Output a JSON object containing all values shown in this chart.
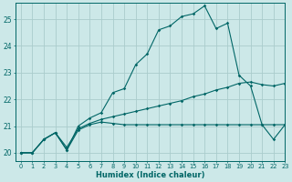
{
  "xlabel": "Humidex (Indice chaleur)",
  "bg_color": "#cce8e8",
  "grid_color": "#aacccc",
  "line_color": "#006666",
  "xlim": [
    -0.5,
    23
  ],
  "ylim": [
    19.7,
    25.6
  ],
  "yticks": [
    20,
    21,
    22,
    23,
    24,
    25
  ],
  "xticks": [
    0,
    1,
    2,
    3,
    4,
    5,
    6,
    7,
    8,
    9,
    10,
    11,
    12,
    13,
    14,
    15,
    16,
    17,
    18,
    19,
    20,
    21,
    22,
    23
  ],
  "series": [
    [
      20.0,
      20.0,
      20.5,
      20.75,
      20.1,
      20.85,
      21.05,
      21.15,
      21.1,
      21.05,
      21.05,
      21.05,
      21.05,
      21.05,
      21.05,
      21.05,
      21.05,
      21.05,
      21.05,
      21.05,
      21.05,
      21.05,
      21.05,
      21.05
    ],
    [
      20.0,
      20.0,
      20.5,
      20.75,
      20.2,
      20.9,
      21.1,
      21.25,
      21.35,
      21.45,
      21.55,
      21.65,
      21.75,
      21.85,
      21.95,
      22.1,
      22.2,
      22.35,
      22.45,
      22.6,
      22.65,
      22.55,
      22.5,
      22.6
    ],
    [
      20.0,
      20.0,
      20.5,
      20.75,
      20.1,
      21.0,
      21.3,
      21.5,
      22.25,
      22.4,
      23.3,
      23.7,
      24.6,
      24.75,
      25.1,
      25.2,
      25.5,
      24.65,
      24.85,
      22.9,
      22.5,
      21.05,
      20.5,
      21.05
    ]
  ]
}
